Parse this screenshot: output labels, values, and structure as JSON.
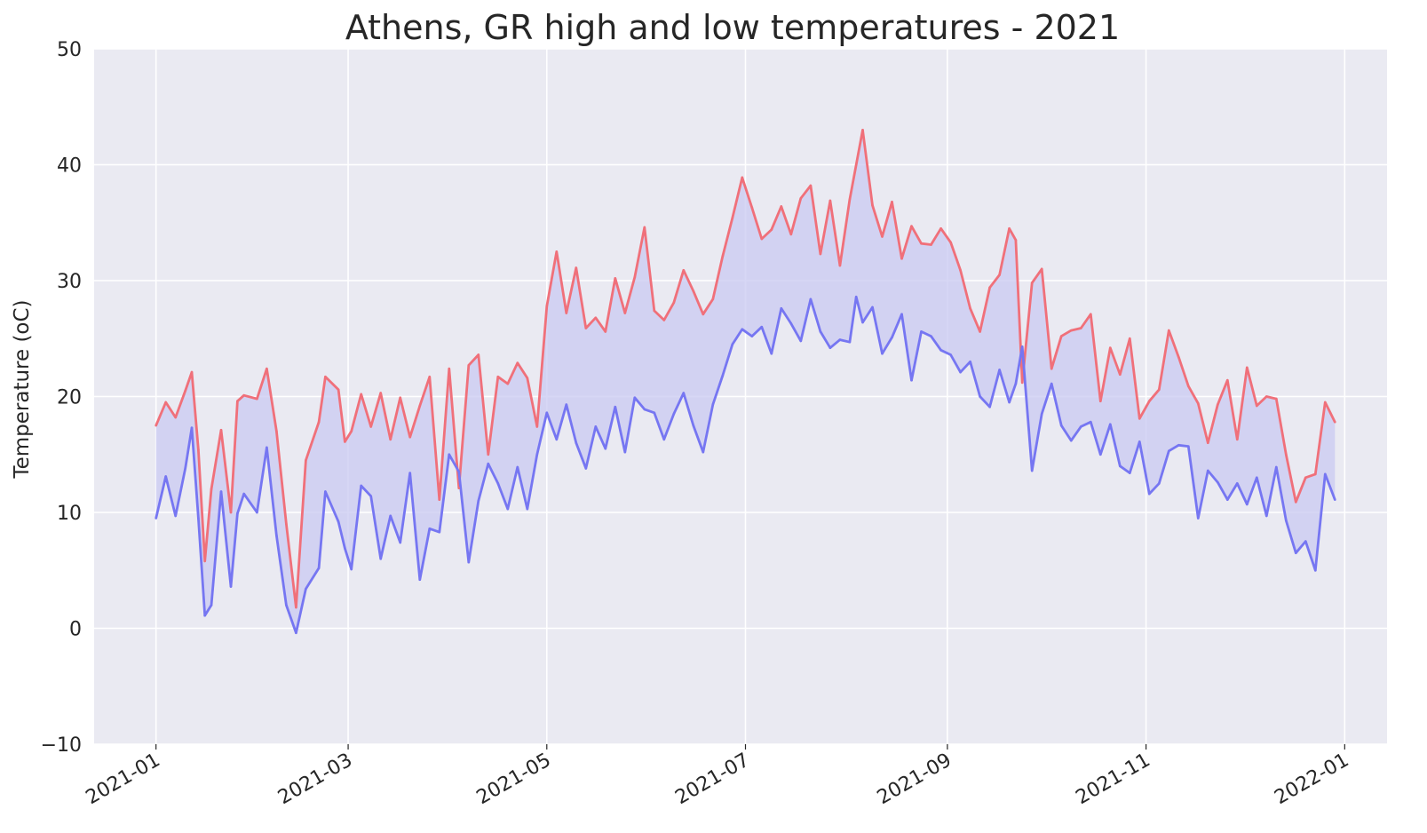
{
  "chart_data": {
    "type": "area",
    "title": "Athens, GR high and low temperatures - 2021",
    "xlabel": "",
    "ylabel": "Temperature (oC)",
    "ylim": [
      -10,
      50
    ],
    "xlim": [
      "2020-12-13",
      "2022-01-14"
    ],
    "grid": true,
    "yticks": [
      -10,
      0,
      10,
      20,
      30,
      40,
      50
    ],
    "ytick_labels": [
      "−10",
      "0",
      "10",
      "20",
      "30",
      "40",
      "50"
    ],
    "xticks": [
      "2021-01-01",
      "2021-03-01",
      "2021-05-01",
      "2021-07-01",
      "2021-09-01",
      "2021-11-01",
      "2022-01-01"
    ],
    "xtick_labels": [
      "2021-01",
      "2021-03",
      "2021-05",
      "2021-07",
      "2021-09",
      "2021-11",
      "2022-01"
    ],
    "colors": {
      "high": "#f0707a",
      "low": "#7676f2",
      "fill": "#c9c9f2",
      "plot_bg": "#eaeaf2",
      "grid": "#ffffff"
    },
    "x": [
      "2021-01-01",
      "2021-01-04",
      "2021-01-07",
      "2021-01-10",
      "2021-01-12",
      "2021-01-14",
      "2021-01-16",
      "2021-01-18",
      "2021-01-21",
      "2021-01-24",
      "2021-01-26",
      "2021-01-28",
      "2021-02-01",
      "2021-02-04",
      "2021-02-07",
      "2021-02-10",
      "2021-02-13",
      "2021-02-16",
      "2021-02-20",
      "2021-02-22",
      "2021-02-26",
      "2021-02-28",
      "2021-03-02",
      "2021-03-05",
      "2021-03-08",
      "2021-03-11",
      "2021-03-14",
      "2021-03-17",
      "2021-03-20",
      "2021-03-23",
      "2021-03-26",
      "2021-03-29",
      "2021-04-01",
      "2021-04-04",
      "2021-04-07",
      "2021-04-10",
      "2021-04-13",
      "2021-04-16",
      "2021-04-19",
      "2021-04-22",
      "2021-04-25",
      "2021-04-28",
      "2021-05-01",
      "2021-05-04",
      "2021-05-07",
      "2021-05-10",
      "2021-05-13",
      "2021-05-16",
      "2021-05-19",
      "2021-05-22",
      "2021-05-25",
      "2021-05-28",
      "2021-05-31",
      "2021-06-03",
      "2021-06-06",
      "2021-06-09",
      "2021-06-12",
      "2021-06-15",
      "2021-06-18",
      "2021-06-21",
      "2021-06-24",
      "2021-06-27",
      "2021-06-30",
      "2021-07-03",
      "2021-07-06",
      "2021-07-09",
      "2021-07-12",
      "2021-07-15",
      "2021-07-18",
      "2021-07-21",
      "2021-07-24",
      "2021-07-27",
      "2021-07-30",
      "2021-08-02",
      "2021-08-04",
      "2021-08-06",
      "2021-08-09",
      "2021-08-12",
      "2021-08-15",
      "2021-08-18",
      "2021-08-21",
      "2021-08-24",
      "2021-08-27",
      "2021-08-30",
      "2021-09-02",
      "2021-09-05",
      "2021-09-08",
      "2021-09-11",
      "2021-09-14",
      "2021-09-17",
      "2021-09-20",
      "2021-09-22",
      "2021-09-24",
      "2021-09-27",
      "2021-09-30",
      "2021-10-03",
      "2021-10-06",
      "2021-10-09",
      "2021-10-12",
      "2021-10-15",
      "2021-10-18",
      "2021-10-21",
      "2021-10-24",
      "2021-10-27",
      "2021-10-30",
      "2021-11-02",
      "2021-11-05",
      "2021-11-08",
      "2021-11-11",
      "2021-11-14",
      "2021-11-17",
      "2021-11-20",
      "2021-11-23",
      "2021-11-26",
      "2021-11-29",
      "2021-12-02",
      "2021-12-05",
      "2021-12-08",
      "2021-12-11",
      "2021-12-14",
      "2021-12-17",
      "2021-12-20",
      "2021-12-23",
      "2021-12-26",
      "2021-12-29"
    ],
    "series": [
      {
        "key": "high",
        "values": [
          17.5,
          19.5,
          18.2,
          20.5,
          22.1,
          15.4,
          5.8,
          12.0,
          17.1,
          10.0,
          19.6,
          20.1,
          19.8,
          22.4,
          17.0,
          9.0,
          1.8,
          14.5,
          17.8,
          21.7,
          20.6,
          16.1,
          17.0,
          20.2,
          17.4,
          20.3,
          16.3,
          19.9,
          16.5,
          19.2,
          21.7,
          11.1,
          22.4,
          12.1,
          22.7,
          23.6,
          15.0,
          21.7,
          21.1,
          22.9,
          21.6,
          17.4,
          27.8,
          32.5,
          27.2,
          31.1,
          25.9,
          26.8,
          25.6,
          30.2,
          27.2,
          30.3,
          34.6,
          27.4,
          26.6,
          28.1,
          30.9,
          29.1,
          27.1,
          28.4,
          32.1,
          35.4,
          38.9,
          36.3,
          33.6,
          34.4,
          36.4,
          34.0,
          37.1,
          38.2,
          32.3,
          36.9,
          31.3,
          37.0,
          40.0,
          43.0,
          36.5,
          33.8,
          36.8,
          31.9,
          34.7,
          33.2,
          33.1,
          34.5,
          33.3,
          30.9,
          27.6,
          25.6,
          29.4,
          30.5,
          34.5,
          33.5,
          21.2,
          29.8,
          31.0,
          22.4,
          25.2,
          25.7,
          25.9,
          27.1,
          19.6,
          24.2,
          21.9,
          25.0,
          18.1,
          19.6,
          20.6,
          25.7,
          23.4,
          20.9,
          19.4,
          16.0,
          19.3,
          21.4,
          16.3,
          22.5,
          19.2,
          20.0,
          19.8,
          15.0,
          10.9,
          13.0,
          13.3,
          19.5,
          17.8
        ]
      },
      {
        "key": "low",
        "values": [
          9.5,
          13.1,
          9.7,
          13.8,
          17.3,
          9.5,
          1.1,
          2.0,
          11.8,
          3.6,
          9.9,
          11.6,
          10.0,
          15.6,
          8.0,
          2.0,
          -0.4,
          3.4,
          5.2,
          11.8,
          9.2,
          6.9,
          5.1,
          12.3,
          11.4,
          6.0,
          9.7,
          7.4,
          13.4,
          4.2,
          8.6,
          8.3,
          15.0,
          13.5,
          5.7,
          11.0,
          14.2,
          12.5,
          10.3,
          13.9,
          10.3,
          15.0,
          18.6,
          16.3,
          19.3,
          16.0,
          13.8,
          17.4,
          15.5,
          19.1,
          15.2,
          19.9,
          18.9,
          18.6,
          16.3,
          18.5,
          20.3,
          17.5,
          15.2,
          19.3,
          21.8,
          24.5,
          25.8,
          25.2,
          26.0,
          23.7,
          27.6,
          26.3,
          24.8,
          28.4,
          25.6,
          24.2,
          24.9,
          24.7,
          28.6,
          26.4,
          27.7,
          23.7,
          25.1,
          27.1,
          21.4,
          25.6,
          25.2,
          24.0,
          23.6,
          22.1,
          23.0,
          20.0,
          19.1,
          22.3,
          19.5,
          21.1,
          24.3,
          13.6,
          18.5,
          21.1,
          17.5,
          16.2,
          17.4,
          17.8,
          15.0,
          17.6,
          14.0,
          13.4,
          16.1,
          11.6,
          12.5,
          15.3,
          15.8,
          15.7,
          9.5,
          13.6,
          12.6,
          11.1,
          12.5,
          10.7,
          13.0,
          9.7,
          13.9,
          9.3,
          6.5,
          7.5,
          5.0,
          13.3,
          11.1
        ]
      }
    ]
  }
}
